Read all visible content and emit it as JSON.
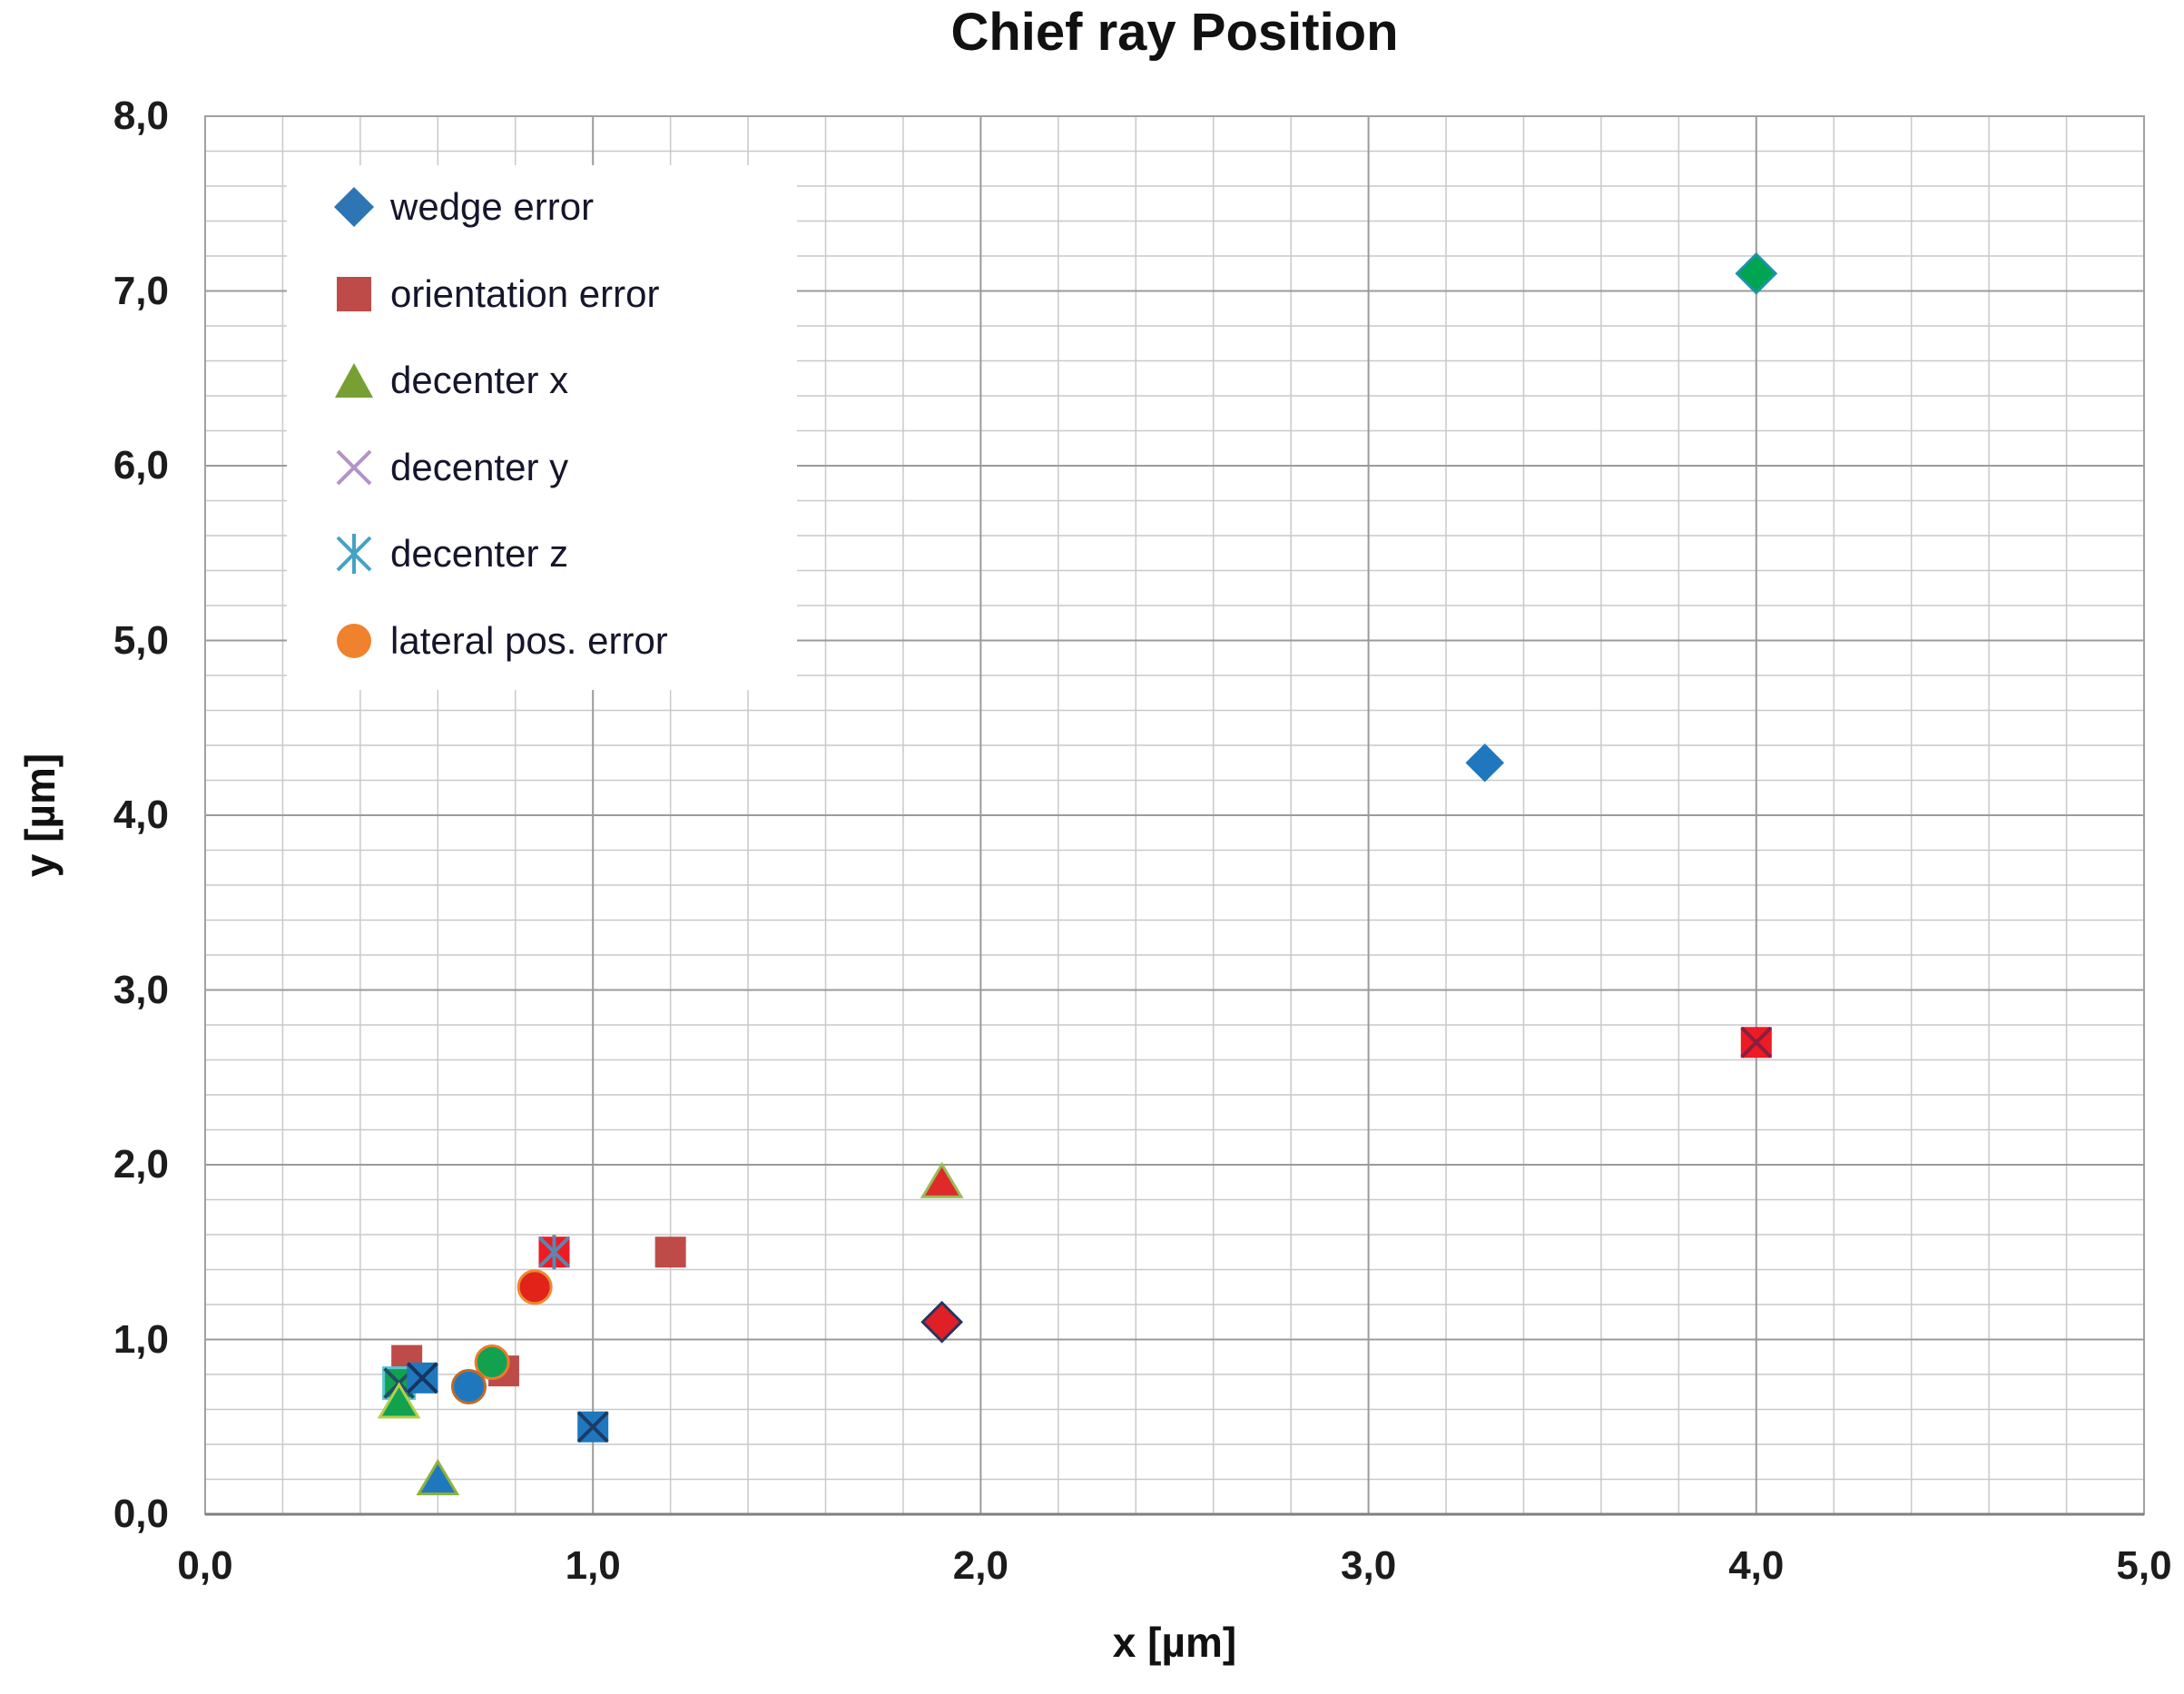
{
  "page": {
    "title": "Chief ray Position"
  },
  "chart_data": {
    "type": "scatter",
    "title": "Chief ray Position",
    "xlabel": "x [µm]",
    "ylabel": "y [µm]",
    "xlim": [
      0,
      5
    ],
    "ylim": [
      0,
      8
    ],
    "x_tick_labels": [
      "0,0",
      "1,0",
      "2,0",
      "3,0",
      "4,0",
      "5,0"
    ],
    "y_tick_labels": [
      "0,0",
      "1,0",
      "2,0",
      "3,0",
      "4,0",
      "5,0",
      "6,0",
      "7,0",
      "8,0"
    ],
    "minor_grid_step": 0.2,
    "major_grid_step": 1.0,
    "grid": true,
    "decimal_style": "comma",
    "legend_position": "top-left-inside",
    "legend": [
      {
        "label": "wedge error",
        "marker": "diamond",
        "color": "#2E75B6"
      },
      {
        "label": "orientation error",
        "marker": "square",
        "color": "#BE4B48"
      },
      {
        "label": "decenter x",
        "marker": "triangle",
        "color": "#77A033"
      },
      {
        "label": "decenter y",
        "marker": "x-cross",
        "color": "#B493C8"
      },
      {
        "label": "decenter z",
        "marker": "asterisk",
        "color": "#44A3C4"
      },
      {
        "label": "lateral pos. error",
        "marker": "circle",
        "color": "#F0822D"
      }
    ],
    "points": [
      {
        "x": 1.2,
        "y": 1.5,
        "shape": "square",
        "fill": "#BE4B48"
      },
      {
        "x": 0.9,
        "y": 1.5,
        "shape": "square",
        "fill": "#ED1C24",
        "overlay": "asterisk",
        "overlay_color": "#5E86B0"
      },
      {
        "x": 0.85,
        "y": 1.3,
        "shape": "circle",
        "fill": "#E2231A",
        "edge": "#F0882E"
      },
      {
        "x": 0.52,
        "y": 0.88,
        "shape": "square",
        "fill": "#BE4B48"
      },
      {
        "x": 0.5,
        "y": 0.75,
        "shape": "square",
        "fill": "#12A24F",
        "edge": "#56C7D6",
        "overlay": "x",
        "overlay_color": "#234E63"
      },
      {
        "x": 0.56,
        "y": 0.78,
        "shape": "square",
        "fill": "#1F78BE",
        "overlay": "x",
        "overlay_color": "#16355F"
      },
      {
        "x": 0.5,
        "y": 0.64,
        "shape": "triangle",
        "fill": "#12A24F",
        "edge": "#B6CE4C"
      },
      {
        "x": 0.77,
        "y": 0.82,
        "shape": "square",
        "fill": "#BE4B48"
      },
      {
        "x": 0.74,
        "y": 0.87,
        "shape": "circle",
        "fill": "#12A24F",
        "edge": "#E87E2B"
      },
      {
        "x": 0.68,
        "y": 0.73,
        "shape": "circle",
        "fill": "#1F78BE",
        "edge": "#BF6B2A"
      },
      {
        "x": 1.0,
        "y": 0.5,
        "shape": "square",
        "fill": "#1F78BE",
        "overlay": "x",
        "overlay_color": "#1D3B66"
      },
      {
        "x": 0.6,
        "y": 0.2,
        "shape": "triangle",
        "fill": "#1F78BE",
        "edge": "#8DB23D"
      },
      {
        "x": 1.9,
        "y": 1.9,
        "shape": "triangle",
        "fill": "#E02A28",
        "edge": "#9BBB59"
      },
      {
        "x": 1.9,
        "y": 1.1,
        "shape": "diamond",
        "fill": "#DF2027",
        "edge": "#27355E"
      },
      {
        "x": 4.0,
        "y": 2.7,
        "shape": "square",
        "fill": "#ED1C24",
        "overlay": "x",
        "overlay_color": "#8C1D40"
      },
      {
        "x": 3.3,
        "y": 4.3,
        "shape": "diamond",
        "fill": "#1F78BE"
      },
      {
        "x": 4.0,
        "y": 7.1,
        "shape": "diamond",
        "fill": "#00A551",
        "edge": "#1C93A8"
      }
    ]
  },
  "colors": {
    "grid_minor": "#C9C9C9",
    "grid_major": "#9B9B9B",
    "plot_border": "#A0A0A0",
    "axis_line": "#7F7F7F",
    "text": "#1A1A1A",
    "legend_text": "#15152B"
  }
}
